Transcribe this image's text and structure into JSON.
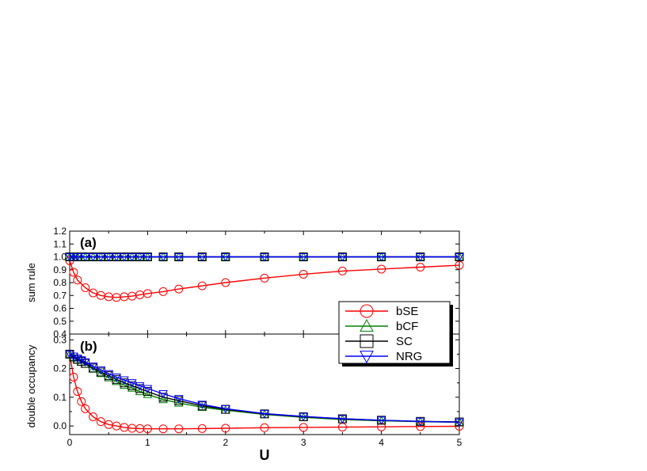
{
  "chart_data": [
    {
      "type": "line",
      "panel_label": "(a)",
      "ylabel": "sum rule",
      "xlim": [
        0,
        5
      ],
      "ylim": [
        0.4,
        1.2
      ],
      "yticks": [
        "0.4",
        "0.5",
        "0.6",
        "0.7",
        "0.8",
        "0.9",
        "1.0",
        "1.1",
        "1.2"
      ],
      "grid": false,
      "series": [
        {
          "name": "bSE",
          "color": "#ff0000",
          "marker": "circle",
          "x": [
            0,
            0.05,
            0.1,
            0.2,
            0.3,
            0.4,
            0.5,
            0.6,
            0.7,
            0.8,
            0.9,
            1.0,
            1.2,
            1.4,
            1.7,
            2.0,
            2.5,
            3.0,
            3.5,
            4.0,
            4.5,
            5.0
          ],
          "y": [
            0.97,
            0.88,
            0.82,
            0.76,
            0.72,
            0.7,
            0.69,
            0.685,
            0.69,
            0.695,
            0.705,
            0.715,
            0.73,
            0.75,
            0.775,
            0.8,
            0.835,
            0.865,
            0.89,
            0.905,
            0.92,
            0.935
          ]
        },
        {
          "name": "bCF",
          "color": "#008000",
          "marker": "triangle-up",
          "x": [
            0,
            0.05,
            0.1,
            0.2,
            0.3,
            0.4,
            0.5,
            0.6,
            0.7,
            0.8,
            0.9,
            1.0,
            1.2,
            1.4,
            1.7,
            2.0,
            2.5,
            3.0,
            3.5,
            4.0,
            4.5,
            5.0
          ],
          "y": [
            1,
            1,
            1,
            1,
            1,
            1,
            1,
            1,
            1,
            1,
            1,
            1,
            1,
            1,
            1,
            1,
            1,
            1,
            1,
            1,
            1,
            1
          ]
        },
        {
          "name": "SC",
          "color": "#000000",
          "marker": "square",
          "x": [
            0,
            0.05,
            0.1,
            0.2,
            0.3,
            0.4,
            0.5,
            0.6,
            0.7,
            0.8,
            0.9,
            1.0,
            1.2,
            1.4,
            1.7,
            2.0,
            2.5,
            3.0,
            3.5,
            4.0,
            4.5,
            5.0
          ],
          "y": [
            1,
            1,
            1,
            1,
            1,
            1,
            1,
            1,
            1,
            1,
            1,
            1,
            1,
            1,
            1,
            1,
            1,
            1,
            1,
            1,
            1,
            1
          ]
        },
        {
          "name": "NRG",
          "color": "#0000ff",
          "marker": "triangle-down",
          "x": [
            0,
            0.05,
            0.1,
            0.2,
            0.3,
            0.4,
            0.5,
            0.6,
            0.7,
            0.8,
            0.9,
            1.0,
            1.2,
            1.4,
            1.7,
            2.0,
            2.5,
            3.0,
            3.5,
            4.0,
            4.5,
            5.0
          ],
          "y": [
            1,
            1,
            1,
            1,
            1,
            1,
            1,
            1,
            1,
            1,
            1,
            1,
            1,
            1,
            1,
            1,
            1,
            1,
            1,
            1,
            1,
            1
          ]
        }
      ]
    },
    {
      "type": "line",
      "panel_label": "(b)",
      "ylabel": "double occupancy",
      "xlabel": "U",
      "xlim": [
        0,
        5
      ],
      "ylim": [
        -0.03,
        0.32
      ],
      "yticks": [
        "0.0",
        "0.1",
        "0.2",
        "0.3"
      ],
      "xticks": [
        "0",
        "1",
        "2",
        "3",
        "4",
        "5"
      ],
      "grid": false,
      "series": [
        {
          "name": "bSE",
          "color": "#ff0000",
          "marker": "circle",
          "x": [
            0,
            0.05,
            0.1,
            0.15,
            0.2,
            0.3,
            0.4,
            0.5,
            0.6,
            0.7,
            0.8,
            0.9,
            1.0,
            1.2,
            1.4,
            1.7,
            2.0,
            2.5,
            3.0,
            3.5,
            4.0,
            4.5,
            5.0
          ],
          "y": [
            0.25,
            0.17,
            0.12,
            0.085,
            0.06,
            0.032,
            0.015,
            0.005,
            0.0,
            -0.005,
            -0.008,
            -0.009,
            -0.01,
            -0.01,
            -0.01,
            -0.009,
            -0.008,
            -0.006,
            -0.005,
            -0.004,
            -0.003,
            -0.002,
            -0.001
          ]
        },
        {
          "name": "bCF",
          "color": "#008000",
          "marker": "triangle-up",
          "x": [
            0,
            0.05,
            0.1,
            0.15,
            0.2,
            0.3,
            0.4,
            0.5,
            0.6,
            0.7,
            0.8,
            0.9,
            1.0,
            1.2,
            1.4,
            1.7,
            2.0,
            2.5,
            3.0,
            3.5,
            4.0,
            4.5,
            5.0
          ],
          "y": [
            0.25,
            0.24,
            0.23,
            0.222,
            0.215,
            0.198,
            0.183,
            0.168,
            0.155,
            0.142,
            0.132,
            0.12,
            0.11,
            0.092,
            0.08,
            0.065,
            0.055,
            0.04,
            0.03,
            0.022,
            0.018,
            0.015,
            0.013
          ]
        },
        {
          "name": "SC",
          "color": "#000000",
          "marker": "square",
          "x": [
            0,
            0.05,
            0.1,
            0.15,
            0.2,
            0.3,
            0.4,
            0.5,
            0.6,
            0.7,
            0.8,
            0.9,
            1.0,
            1.2,
            1.4,
            1.7,
            2.0,
            2.5,
            3.0,
            3.5,
            4.0,
            4.5,
            5.0
          ],
          "y": [
            0.25,
            0.24,
            0.232,
            0.225,
            0.218,
            0.202,
            0.188,
            0.175,
            0.162,
            0.15,
            0.14,
            0.13,
            0.12,
            0.1,
            0.088,
            0.07,
            0.058,
            0.042,
            0.032,
            0.025,
            0.02,
            0.016,
            0.014
          ]
        },
        {
          "name": "NRG",
          "color": "#0000ff",
          "marker": "triangle-down",
          "x": [
            0,
            0.05,
            0.1,
            0.15,
            0.2,
            0.3,
            0.4,
            0.5,
            0.6,
            0.7,
            0.8,
            0.9,
            1.0,
            1.2,
            1.4,
            1.7,
            2.0,
            2.5,
            3.0,
            3.5,
            4.0,
            4.5,
            5.0
          ],
          "y": [
            0.25,
            0.243,
            0.236,
            0.23,
            0.223,
            0.208,
            0.195,
            0.182,
            0.17,
            0.16,
            0.15,
            0.14,
            0.13,
            0.112,
            0.095,
            0.075,
            0.06,
            0.043,
            0.033,
            0.025,
            0.02,
            0.016,
            0.013
          ]
        }
      ]
    }
  ],
  "legend": {
    "placement": "right-middle",
    "entries": [
      {
        "label": "bSE",
        "color": "#ff0000",
        "marker": "circle"
      },
      {
        "label": "bCF",
        "color": "#008000",
        "marker": "triangle-up"
      },
      {
        "label": "SC",
        "color": "#000000",
        "marker": "square"
      },
      {
        "label": "NRG",
        "color": "#0000ff",
        "marker": "triangle-down"
      }
    ]
  }
}
